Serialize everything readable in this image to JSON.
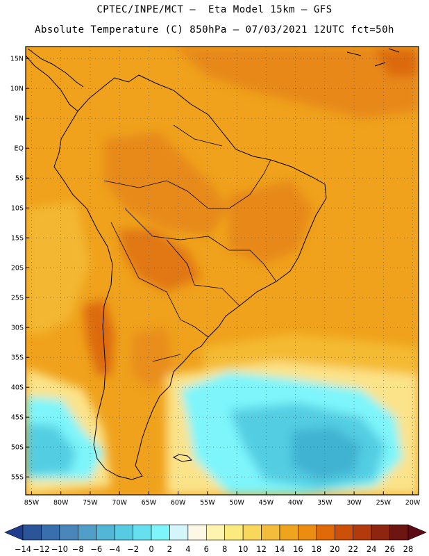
{
  "header": {
    "line1": "CPTEC/INPE/MCT –  Eta Model 15km – GFS",
    "line2": "Absolute Temperature (C) 850hPa – 07/03/2021 12UTC fct=50h"
  },
  "map": {
    "lon_range": [
      -86,
      -19
    ],
    "lat_range": [
      -58,
      17
    ],
    "lat_ticks": [
      "15N",
      "10N",
      "5N",
      "EQ",
      "5S",
      "10S",
      "15S",
      "20S",
      "25S",
      "30S",
      "35S",
      "40S",
      "45S",
      "50S",
      "55S"
    ],
    "lon_ticks": [
      "85W",
      "80W",
      "75W",
      "70W",
      "65W",
      "60W",
      "55W",
      "50W",
      "45W",
      "40W",
      "35W",
      "30W",
      "25W",
      "20W"
    ],
    "grid": "dotted"
  },
  "colorbar": {
    "labels": [
      "-14",
      "-12",
      "-10",
      "-8",
      "-6",
      "-4",
      "-2",
      "0",
      "2",
      "4",
      "6",
      "8",
      "10",
      "12",
      "14",
      "16",
      "18",
      "20",
      "22",
      "24",
      "26",
      "28"
    ],
    "colors": [
      "#1f3d8c",
      "#2a5599",
      "#3a6fad",
      "#4b86bb",
      "#4f9fc8",
      "#52b6d6",
      "#56cbe1",
      "#66e0ef",
      "#7df5fb",
      "#d4f6fb",
      "#fdf8e6",
      "#fdf4b0",
      "#fbea7e",
      "#f9d75b",
      "#f3bd3b",
      "#efa41d",
      "#ec8d12",
      "#e06a08",
      "#cc500a",
      "#b23a0d",
      "#8e250e",
      "#6c1511",
      "#5c0a14"
    ]
  },
  "field_colors": {
    "warm_base": "#f0a21c",
    "hot": "#e5841a",
    "hotter": "#dc6a10",
    "mild": "#f5c03a",
    "cool": "#fbe38a",
    "cold": "#7df5fb",
    "colder": "#52cde2",
    "coldest": "#3fb2d2",
    "coast": "#000000"
  }
}
